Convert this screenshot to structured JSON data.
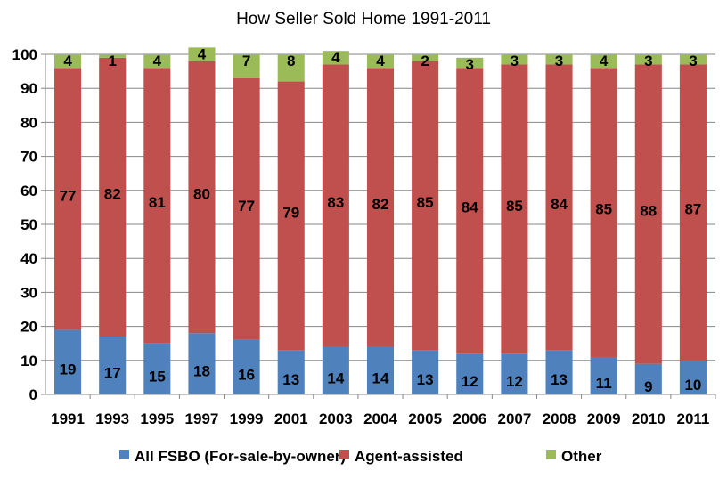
{
  "chart_data": {
    "type": "bar",
    "stacked": true,
    "title": "How Seller Sold Home 1991-2011",
    "categories": [
      "1991",
      "1993",
      "1995",
      "1997",
      "1999",
      "2001",
      "2003",
      "2004",
      "2005",
      "2006",
      "2007",
      "2008",
      "2009",
      "2010",
      "2011"
    ],
    "series": [
      {
        "name": "All FSBO (For-sale-by-owner)",
        "color": "#4f81bd",
        "values": [
          19,
          17,
          15,
          18,
          16,
          13,
          14,
          14,
          13,
          12,
          12,
          13,
          11,
          9,
          10
        ]
      },
      {
        "name": "Agent-assisted",
        "color": "#c0504d",
        "values": [
          77,
          82,
          81,
          80,
          77,
          79,
          83,
          82,
          85,
          84,
          85,
          84,
          85,
          88,
          87
        ]
      },
      {
        "name": "Other",
        "color": "#9bbb59",
        "values": [
          4,
          1,
          4,
          4,
          7,
          8,
          4,
          4,
          2,
          3,
          3,
          3,
          4,
          3,
          3
        ]
      }
    ],
    "ylim": [
      0,
      100
    ],
    "yticks": [
      0,
      10,
      20,
      30,
      40,
      50,
      60,
      70,
      80,
      90,
      100
    ],
    "grid": true,
    "legend": "bottom"
  }
}
